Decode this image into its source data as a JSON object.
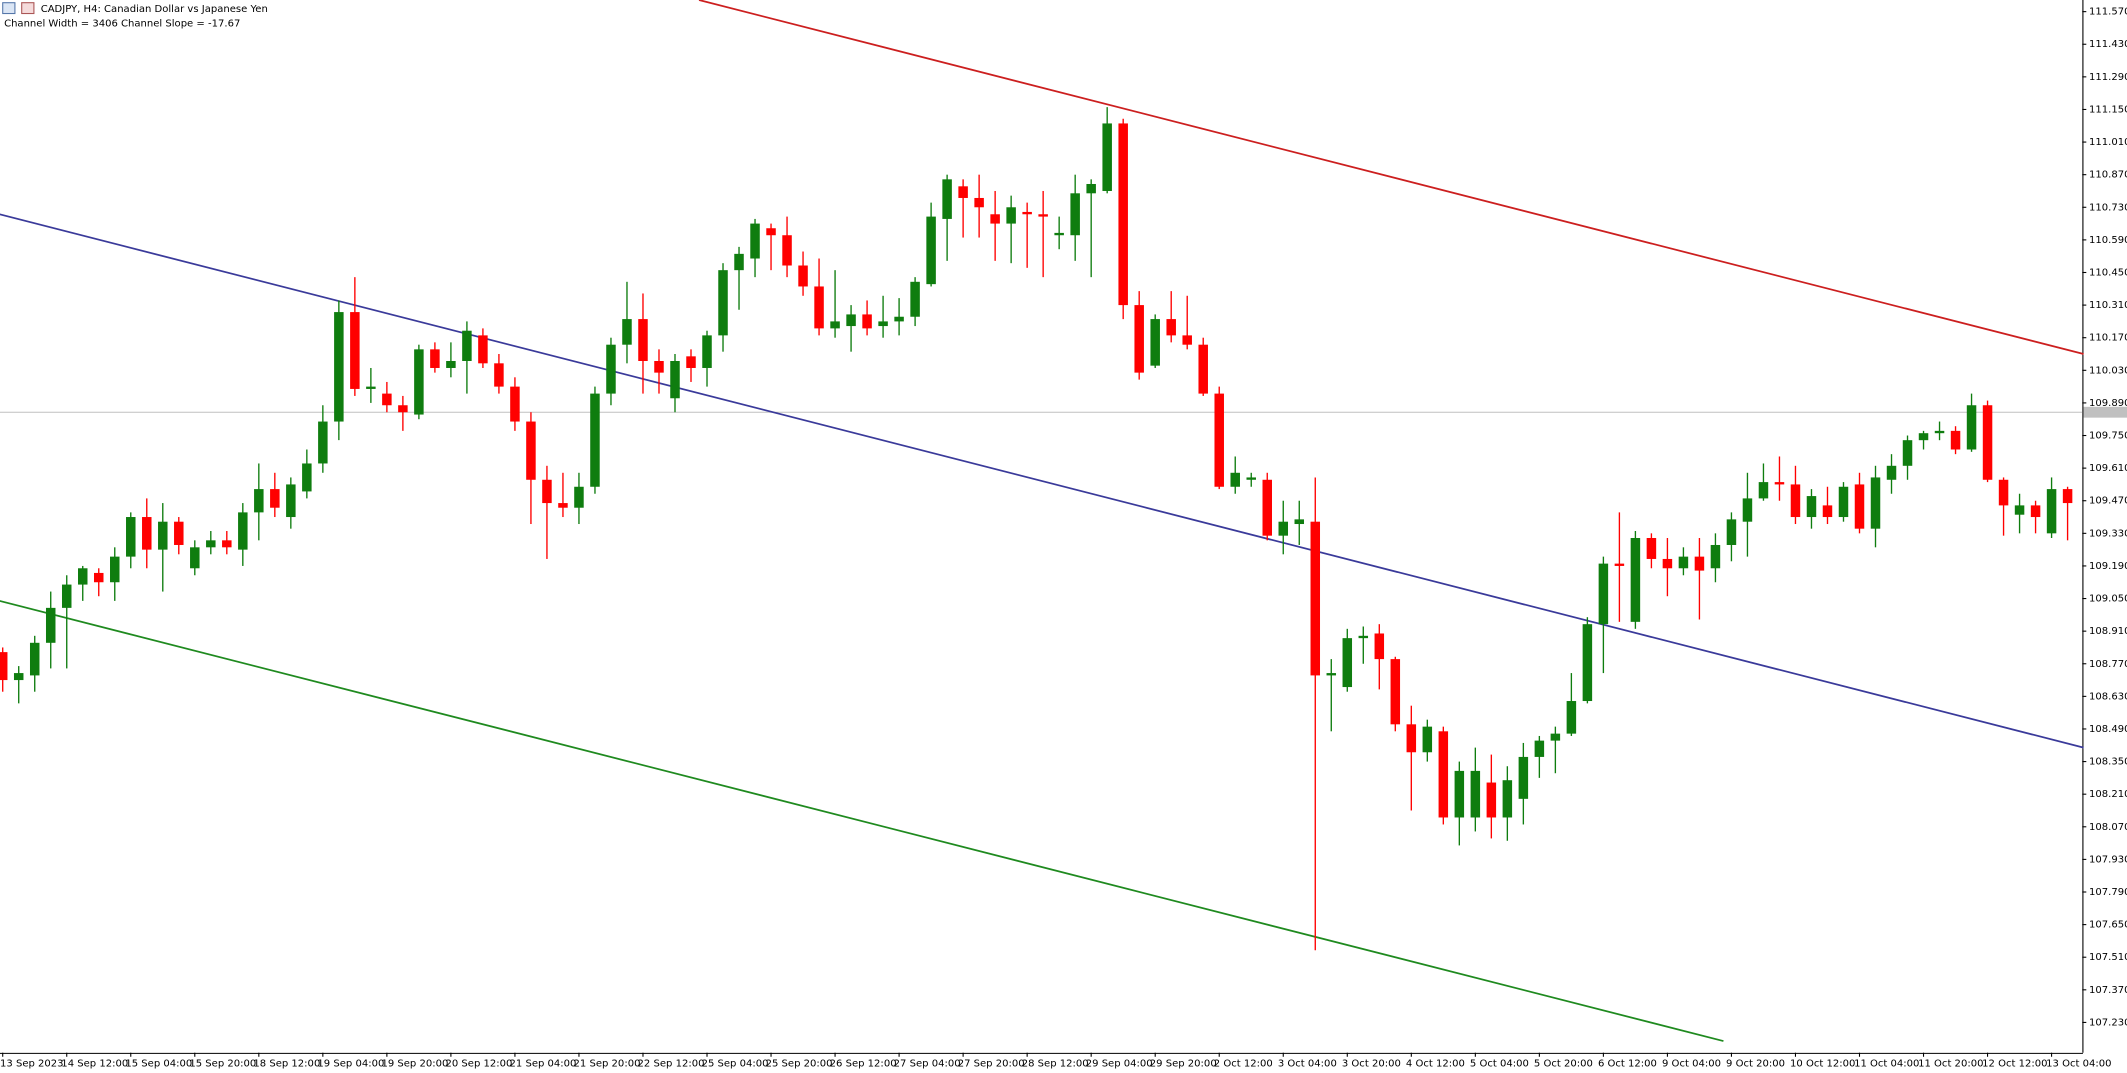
{
  "chart_data": {
    "type": "candlestick",
    "title": "CADJPY, H4:  Canadian Dollar vs Japanese Yen",
    "subtitle": "Channel Width = 3406 Channel Slope = -17.67",
    "up_color": "#0f7d0f",
    "down_color": "#ff0000",
    "categories": [
      "13 Sep 2023",
      null,
      null,
      null,
      "14 Sep 12:00",
      null,
      null,
      null,
      "15 Sep 04:00",
      null,
      null,
      null,
      "15 Sep 20:00",
      null,
      null,
      null,
      "18 Sep 12:00",
      null,
      null,
      null,
      "19 Sep 04:00",
      null,
      null,
      null,
      "19 Sep 20:00",
      null,
      null,
      null,
      "20 Sep 12:00",
      null,
      null,
      null,
      "21 Sep 04:00",
      null,
      null,
      null,
      "21 Sep 20:00",
      null,
      null,
      null,
      "22 Sep 12:00",
      null,
      null,
      null,
      "25 Sep 04:00",
      null,
      null,
      null,
      "25 Sep 20:00",
      null,
      null,
      null,
      "26 Sep 12:00",
      null,
      null,
      null,
      "27 Sep 04:00",
      null,
      null,
      null,
      "27 Sep 20:00",
      null,
      null,
      null,
      "28 Sep 12:00",
      null,
      null,
      null,
      "29 Sep 04:00",
      null,
      null,
      null,
      "29 Sep 20:00",
      null,
      null,
      null,
      "2 Oct 12:00",
      null,
      null,
      null,
      "3 Oct 04:00",
      null,
      null,
      null,
      "3 Oct 20:00",
      null,
      null,
      null,
      "4 Oct 12:00",
      null,
      null,
      null,
      "5 Oct 04:00",
      null,
      null,
      null,
      "5 Oct 20:00",
      null,
      null,
      null,
      "6 Oct 12:00",
      null,
      null,
      null,
      "9 Oct 04:00",
      null,
      null,
      null,
      "9 Oct 20:00",
      null,
      null,
      null,
      "10 Oct 12:00",
      null,
      null,
      null,
      "11 Oct 04:00",
      null,
      null,
      null,
      "11 Oct 20:00",
      null,
      null,
      null,
      "12 Oct 12:00",
      null,
      null,
      null,
      "13 Oct 04:00",
      null
    ],
    "open": [
      108.82,
      108.7,
      108.72,
      108.86,
      109.01,
      109.11,
      109.16,
      109.12,
      109.23,
      109.4,
      109.26,
      109.38,
      109.18,
      109.27,
      109.3,
      109.26,
      109.42,
      109.52,
      109.4,
      109.51,
      109.63,
      109.81,
      110.28,
      109.95,
      109.93,
      109.88,
      109.84,
      110.12,
      110.04,
      110.07,
      110.18,
      110.06,
      109.96,
      109.81,
      109.56,
      109.46,
      109.44,
      109.53,
      109.93,
      110.14,
      110.25,
      110.07,
      109.91,
      110.09,
      110.04,
      110.18,
      110.46,
      110.51,
      110.64,
      110.61,
      110.48,
      110.39,
      110.21,
      110.22,
      110.27,
      110.22,
      110.24,
      110.26,
      110.4,
      110.68,
      110.82,
      110.77,
      110.7,
      110.66,
      110.71,
      110.7,
      110.61,
      110.61,
      110.79,
      110.8,
      111.09,
      110.31,
      110.05,
      110.25,
      110.18,
      110.14,
      109.93,
      109.53,
      109.56,
      109.56,
      109.32,
      109.37,
      109.38,
      108.72,
      108.67,
      108.88,
      108.9,
      108.79,
      108.51,
      108.39,
      108.48,
      108.11,
      108.11,
      108.26,
      108.11,
      108.19,
      108.37,
      108.44,
      108.47,
      108.61,
      108.94,
      109.2,
      108.95,
      109.31,
      109.22,
      109.18,
      109.23,
      109.18,
      109.28,
      109.38,
      109.48,
      109.55,
      109.54,
      109.4,
      109.45,
      109.4,
      109.54,
      109.35,
      109.56,
      109.62,
      109.73,
      109.76,
      109.77,
      109.69,
      109.88,
      109.56,
      109.41,
      109.45,
      109.33,
      109.52
    ],
    "high": [
      108.84,
      108.76,
      108.89,
      109.08,
      109.15,
      109.19,
      109.18,
      109.27,
      109.42,
      109.48,
      109.46,
      109.4,
      109.3,
      109.34,
      109.34,
      109.46,
      109.63,
      109.59,
      109.57,
      109.69,
      109.88,
      110.33,
      110.43,
      110.04,
      109.98,
      109.92,
      110.14,
      110.15,
      110.15,
      110.24,
      110.21,
      110.1,
      110.0,
      109.85,
      109.62,
      109.59,
      109.59,
      109.96,
      110.17,
      110.41,
      110.36,
      110.12,
      110.1,
      110.12,
      110.2,
      110.49,
      110.56,
      110.68,
      110.66,
      110.69,
      110.54,
      110.51,
      110.46,
      110.31,
      110.33,
      110.35,
      110.34,
      110.43,
      110.75,
      110.87,
      110.85,
      110.87,
      110.8,
      110.78,
      110.75,
      110.8,
      110.69,
      110.87,
      110.85,
      111.16,
      111.11,
      110.37,
      110.27,
      110.37,
      110.35,
      110.17,
      109.96,
      109.66,
      109.59,
      109.59,
      109.47,
      109.47,
      109.57,
      108.79,
      108.92,
      108.93,
      108.94,
      108.8,
      108.59,
      108.53,
      108.5,
      108.35,
      108.41,
      108.38,
      108.33,
      108.43,
      108.46,
      108.5,
      108.73,
      108.97,
      109.23,
      109.42,
      109.34,
      109.33,
      109.31,
      109.27,
      109.31,
      109.33,
      109.42,
      109.59,
      109.63,
      109.66,
      109.62,
      109.52,
      109.53,
      109.55,
      109.59,
      109.62,
      109.67,
      109.75,
      109.77,
      109.81,
      109.79,
      109.93,
      109.9,
      109.57,
      109.5,
      109.47,
      109.57,
      109.53
    ],
    "low": [
      108.65,
      108.6,
      108.65,
      108.75,
      108.75,
      109.04,
      109.06,
      109.04,
      109.18,
      109.18,
      109.08,
      109.24,
      109.15,
      109.24,
      109.24,
      109.19,
      109.3,
      109.4,
      109.35,
      109.48,
      109.59,
      109.73,
      109.92,
      109.89,
      109.85,
      109.77,
      109.82,
      110.02,
      110.0,
      109.93,
      110.04,
      109.93,
      109.77,
      109.37,
      109.22,
      109.4,
      109.37,
      109.5,
      109.88,
      110.06,
      109.93,
      109.93,
      109.85,
      109.98,
      109.96,
      110.11,
      110.29,
      110.43,
      110.46,
      110.43,
      110.35,
      110.18,
      110.17,
      110.11,
      110.18,
      110.17,
      110.18,
      110.22,
      110.39,
      110.5,
      110.6,
      110.6,
      110.5,
      110.49,
      110.47,
      110.43,
      110.55,
      110.5,
      110.43,
      110.79,
      110.25,
      109.99,
      110.04,
      110.15,
      110.12,
      109.92,
      109.52,
      109.5,
      109.53,
      109.3,
      109.24,
      109.28,
      107.54,
      108.48,
      108.65,
      108.77,
      108.66,
      108.48,
      108.14,
      108.35,
      108.08,
      107.99,
      108.05,
      108.02,
      108.01,
      108.08,
      108.28,
      108.3,
      108.46,
      108.6,
      108.73,
      108.95,
      108.92,
      109.18,
      109.06,
      109.15,
      108.96,
      109.12,
      109.21,
      109.23,
      109.47,
      109.47,
      109.37,
      109.35,
      109.37,
      109.38,
      109.33,
      109.27,
      109.5,
      109.56,
      109.69,
      109.73,
      109.67,
      109.68,
      109.55,
      109.32,
      109.33,
      109.33,
      109.31,
      109.3
    ],
    "close": [
      108.7,
      108.73,
      108.86,
      109.01,
      109.11,
      109.18,
      109.12,
      109.23,
      109.4,
      109.26,
      109.38,
      109.28,
      109.27,
      109.3,
      109.27,
      109.42,
      109.52,
      109.44,
      109.54,
      109.63,
      109.81,
      110.28,
      109.95,
      109.96,
      109.88,
      109.85,
      110.12,
      110.04,
      110.07,
      110.2,
      110.06,
      109.96,
      109.81,
      109.56,
      109.46,
      109.44,
      109.53,
      109.93,
      110.14,
      110.25,
      110.07,
      110.02,
      110.07,
      110.04,
      110.18,
      110.46,
      110.53,
      110.66,
      110.61,
      110.48,
      110.39,
      110.21,
      110.24,
      110.27,
      110.21,
      110.24,
      110.26,
      110.41,
      110.69,
      110.85,
      110.77,
      110.73,
      110.66,
      110.73,
      110.7,
      110.69,
      110.62,
      110.79,
      110.83,
      111.09,
      110.31,
      110.02,
      110.25,
      110.18,
      110.14,
      109.93,
      109.53,
      109.59,
      109.57,
      109.32,
      109.38,
      109.39,
      108.72,
      108.73,
      108.88,
      108.89,
      108.79,
      108.51,
      108.39,
      108.5,
      108.11,
      108.31,
      108.31,
      108.11,
      108.27,
      108.37,
      108.44,
      108.47,
      108.61,
      108.94,
      109.2,
      109.19,
      109.31,
      109.22,
      109.18,
      109.23,
      109.17,
      109.28,
      109.39,
      109.48,
      109.55,
      109.54,
      109.4,
      109.49,
      109.4,
      109.53,
      109.35,
      109.57,
      109.62,
      109.73,
      109.76,
      109.77,
      109.69,
      109.88,
      109.56,
      109.45,
      109.45,
      109.4,
      109.52,
      109.46
    ],
    "ylim": [
      107.1,
      111.62
    ],
    "yticks": [
      {
        "value": 111.57,
        "label": "111.570"
      },
      {
        "value": 111.43,
        "label": "111.430"
      },
      {
        "value": 111.29,
        "label": "111.290"
      },
      {
        "value": 111.15,
        "label": "111.150"
      },
      {
        "value": 111.01,
        "label": "111.010"
      },
      {
        "value": 110.87,
        "label": "110.870"
      },
      {
        "value": 110.73,
        "label": "110.730"
      },
      {
        "value": 110.59,
        "label": "110.590"
      },
      {
        "value": 110.45,
        "label": "110.450"
      },
      {
        "value": 110.31,
        "label": "110.310"
      },
      {
        "value": 110.17,
        "label": "110.170"
      },
      {
        "value": 110.03,
        "label": "110.030"
      },
      {
        "value": 109.89,
        "label": "109.890"
      },
      {
        "value": 109.75,
        "label": "109.750"
      },
      {
        "value": 109.61,
        "label": "109.610"
      },
      {
        "value": 109.47,
        "label": "109.470"
      },
      {
        "value": 109.33,
        "label": "109.330"
      },
      {
        "value": 109.19,
        "label": "109.190"
      },
      {
        "value": 109.05,
        "label": "109.050"
      },
      {
        "value": 108.91,
        "label": "108.910"
      },
      {
        "value": 108.77,
        "label": "108.770"
      },
      {
        "value": 108.63,
        "label": "108.630"
      },
      {
        "value": 108.49,
        "label": "108.490"
      },
      {
        "value": 108.35,
        "label": "108.350"
      },
      {
        "value": 108.21,
        "label": "108.210"
      },
      {
        "value": 108.07,
        "label": "108.070"
      },
      {
        "value": 107.93,
        "label": "107.930"
      },
      {
        "value": 107.79,
        "label": "107.790"
      },
      {
        "value": 107.65,
        "label": "107.650"
      },
      {
        "value": 107.51,
        "label": "107.510"
      },
      {
        "value": 107.37,
        "label": "107.370"
      },
      {
        "value": 107.23,
        "label": "107.230"
      }
    ],
    "current_price": 109.85,
    "current_price_color": "#c0c0c0",
    "channel": [
      {
        "color": "#cc1f1f",
        "x": [
          43.5,
          130
        ],
        "y": [
          111.62,
          110.1
        ]
      },
      {
        "color": "#3a3a9a",
        "x": [
          -0.2,
          130
        ],
        "y": [
          110.7,
          108.41
        ]
      },
      {
        "color": "#1f8a1f",
        "x": [
          -0.2,
          107.5
        ],
        "y": [
          109.04,
          107.15
        ]
      }
    ]
  }
}
